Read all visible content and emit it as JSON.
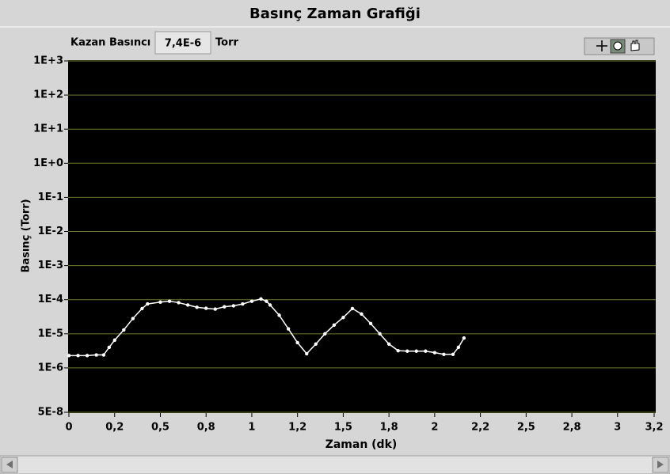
{
  "chart_data": {
    "type": "scatter-line",
    "title": "Basınç Zaman Grafiği",
    "xlabel": "Zaman (dk)",
    "ylabel": "Basınç (Torr)",
    "yscale": "log",
    "grid": true,
    "grid_color": "#6b7a2e",
    "background": "#000000",
    "xlim": [
      0,
      3.2
    ],
    "ylim": [
      5e-08,
      1000
    ],
    "xticks": [
      0,
      {
        "value": 0.25,
        "label": "0,2"
      },
      {
        "value": 0.5,
        "label": "0,5"
      },
      {
        "value": 0.75,
        "label": "0,8"
      },
      1,
      {
        "value": 1.25,
        "label": "1,2"
      },
      {
        "value": 1.5,
        "label": "1,5"
      },
      {
        "value": 1.75,
        "label": "1,8"
      },
      2,
      {
        "value": 2.25,
        "label": "2,2"
      },
      {
        "value": 2.5,
        "label": "2,5"
      },
      {
        "value": 2.75,
        "label": "2,8"
      },
      3,
      {
        "value": 3.2,
        "label": "3,2"
      }
    ],
    "yticks": [
      {
        "value": 1000,
        "label": "1E+3"
      },
      {
        "value": 100,
        "label": "1E+2"
      },
      {
        "value": 10,
        "label": "1E+1"
      },
      {
        "value": 1,
        "label": "1E+0"
      },
      {
        "value": 0.1,
        "label": "1E-1"
      },
      {
        "value": 0.01,
        "label": "1E-2"
      },
      {
        "value": 0.001,
        "label": "1E-3"
      },
      {
        "value": 0.0001,
        "label": "1E-4"
      },
      {
        "value": 1e-05,
        "label": "1E-5"
      },
      {
        "value": 1e-06,
        "label": "1E-6"
      },
      {
        "value": 5e-08,
        "label": "5E-8"
      }
    ],
    "color": "#ffffff",
    "x": [
      0,
      0.05,
      0.1,
      0.15,
      0.19,
      0.22,
      0.25,
      0.3,
      0.35,
      0.4,
      0.43,
      0.5,
      0.55,
      0.6,
      0.65,
      0.7,
      0.75,
      0.8,
      0.85,
      0.9,
      0.95,
      1.0,
      1.05,
      1.08,
      1.1,
      1.15,
      1.2,
      1.25,
      1.3,
      1.35,
      1.4,
      1.45,
      1.5,
      1.55,
      1.6,
      1.65,
      1.7,
      1.75,
      1.8,
      1.85,
      1.9,
      1.95,
      2.0,
      2.05,
      2.1,
      2.13,
      2.16
    ],
    "values": [
      2.3e-06,
      2.3e-06,
      2.3e-06,
      2.4e-06,
      2.4e-06,
      4e-06,
      6.5e-06,
      1.3e-05,
      2.8e-05,
      5.5e-05,
      7.5e-05,
      8.5e-05,
      9e-05,
      8.2e-05,
      7e-05,
      6e-05,
      5.6e-05,
      5.3e-05,
      6.2e-05,
      6.6e-05,
      7.5e-05,
      9e-05,
      0.000105,
      9e-05,
      7e-05,
      3.5e-05,
      1.4e-05,
      5.5e-06,
      2.6e-06,
      5e-06,
      1e-05,
      1.8e-05,
      3e-05,
      5.5e-05,
      3.8e-05,
      2e-05,
      1e-05,
      5e-06,
      3.2e-06,
      3.1e-06,
      3.1e-06,
      3.1e-06,
      2.8e-06,
      2.5e-06,
      2.5e-06,
      4e-06,
      7.5e-06
    ]
  },
  "indicator": {
    "label": "Kazan Basıncı",
    "value": "7,4E-6",
    "unit": "Torr"
  }
}
